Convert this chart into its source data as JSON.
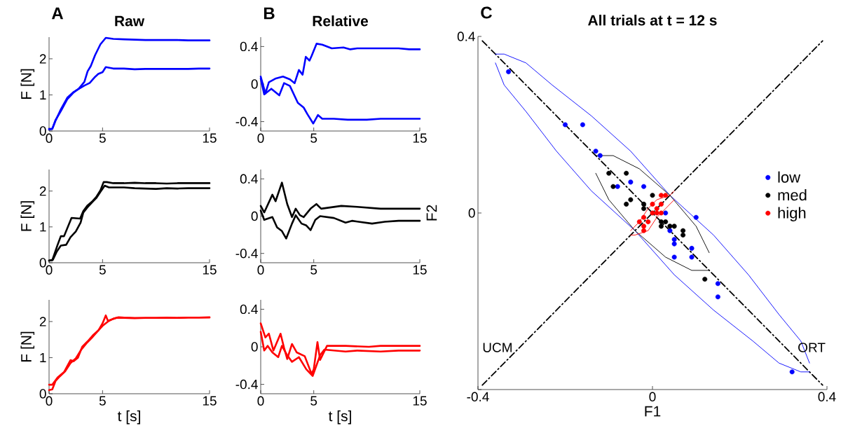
{
  "chart_data": [
    {
      "type": "line",
      "title": "Raw",
      "ylabel": "F [N]",
      "annotations": [
        "A"
      ],
      "xlim": [
        0,
        15
      ],
      "ylim": [
        0,
        2.6
      ],
      "xticks": [
        0,
        5,
        15
      ],
      "yticks": [
        0,
        1,
        2
      ],
      "series": [
        {
          "color": "#0000ff",
          "x": [
            0,
            0.3,
            0.6,
            1.1,
            1.7,
            2.3,
            2.8,
            3.3,
            3.6,
            3.9,
            4.3,
            4.8,
            5.3,
            6,
            7,
            8,
            9,
            10,
            11,
            12,
            13,
            14,
            15
          ],
          "values": [
            0.05,
            0.06,
            0.3,
            0.55,
            0.88,
            1.07,
            1.18,
            1.36,
            1.65,
            1.8,
            2.1,
            2.4,
            2.58,
            2.55,
            2.54,
            2.53,
            2.52,
            2.52,
            2.52,
            2.52,
            2.51,
            2.51,
            2.51
          ]
        },
        {
          "color": "#0000ff",
          "x": [
            0,
            0.3,
            0.6,
            1.1,
            1.7,
            2.3,
            2.8,
            3.3,
            3.8,
            4.3,
            4.6,
            5.0,
            5.3,
            6,
            7,
            8,
            9,
            10,
            11,
            12,
            13,
            14,
            15
          ],
          "values": [
            0.05,
            0.06,
            0.28,
            0.6,
            0.92,
            1.08,
            1.17,
            1.26,
            1.33,
            1.5,
            1.58,
            1.63,
            1.77,
            1.73,
            1.73,
            1.71,
            1.72,
            1.72,
            1.72,
            1.72,
            1.72,
            1.73,
            1.73
          ]
        }
      ]
    },
    {
      "type": "line",
      "ylabel": "F [N]",
      "xlim": [
        0,
        15
      ],
      "ylim": [
        0,
        2.6
      ],
      "xticks": [
        0,
        5,
        15
      ],
      "yticks": [
        0,
        1,
        2
      ],
      "series": [
        {
          "color": "#000000",
          "x": [
            0,
            0.3,
            0.8,
            1.1,
            1.4,
            2.1,
            2.9,
            3.2,
            3.6,
            4.0,
            4.4,
            4.8,
            5.1,
            5.4,
            6,
            7,
            8,
            9,
            10,
            11,
            12,
            13,
            14,
            15
          ],
          "values": [
            0.06,
            0.07,
            0.5,
            0.74,
            0.74,
            1.25,
            1.23,
            1.44,
            1.6,
            1.7,
            1.83,
            2.02,
            2.25,
            2.25,
            2.22,
            2.22,
            2.23,
            2.22,
            2.22,
            2.21,
            2.22,
            2.22,
            2.22,
            2.22
          ]
        },
        {
          "color": "#000000",
          "x": [
            0,
            0.35,
            0.7,
            1.1,
            1.6,
            2.0,
            2.5,
            2.95,
            3.2,
            3.6,
            4.0,
            4.4,
            4.8,
            5.2,
            5.6,
            6,
            7,
            8,
            9,
            10,
            11,
            12,
            13,
            14,
            15
          ],
          "values": [
            0.06,
            0.08,
            0.3,
            0.48,
            0.5,
            0.71,
            0.87,
            1.12,
            1.4,
            1.55,
            1.68,
            1.8,
            1.98,
            2.15,
            2.1,
            2.1,
            2.1,
            2.08,
            2.07,
            2.06,
            2.08,
            2.07,
            2.08,
            2.08,
            2.08
          ]
        }
      ]
    },
    {
      "type": "line",
      "xlabel": "t [s]",
      "ylabel": "F [N]",
      "xlim": [
        0,
        15
      ],
      "ylim": [
        0,
        2.6
      ],
      "xticks": [
        0,
        5,
        15
      ],
      "yticks": [
        0,
        1,
        2
      ],
      "series": [
        {
          "color": "#ff0000",
          "x": [
            0,
            0.3,
            0.8,
            1.4,
            2.0,
            2.3,
            2.7,
            3.1,
            3.6,
            4.1,
            4.6,
            5.0,
            5.3,
            5.5,
            5.8,
            6.3,
            7,
            8,
            9,
            10,
            11,
            12,
            13,
            14,
            15
          ],
          "values": [
            0.25,
            0.25,
            0.45,
            0.6,
            0.93,
            0.9,
            1.0,
            1.3,
            1.45,
            1.62,
            1.75,
            1.95,
            2.17,
            2.02,
            2.05,
            2.1,
            2.1,
            2.09,
            2.1,
            2.1,
            2.1,
            2.1,
            2.11,
            2.11,
            2.11
          ]
        },
        {
          "color": "#ff0000",
          "x": [
            0,
            0.3,
            0.6,
            1.0,
            1.5,
            2.0,
            2.5,
            3.0,
            3.5,
            4.0,
            4.5,
            5.0,
            5.5,
            6.0,
            6.5,
            7,
            8,
            9,
            10,
            11,
            12,
            13,
            14,
            15
          ],
          "values": [
            0.1,
            0.12,
            0.35,
            0.48,
            0.62,
            0.85,
            0.98,
            1.22,
            1.4,
            1.55,
            1.72,
            1.88,
            2.0,
            2.08,
            2.12,
            2.11,
            2.1,
            2.1,
            2.1,
            2.11,
            2.1,
            2.11,
            2.11,
            2.12
          ]
        }
      ]
    },
    {
      "type": "line",
      "title": "Relative",
      "annotations": [
        "B"
      ],
      "xlim": [
        0,
        15
      ],
      "ylim": [
        -0.5,
        0.5
      ],
      "xticks": [
        0,
        5,
        15
      ],
      "yticks": [
        -0.4,
        0,
        0.4
      ],
      "series": [
        {
          "color": "#0000ff",
          "x": [
            0,
            0.44,
            0.77,
            1.43,
            2.1,
            2.75,
            3.2,
            3.6,
            3.95,
            4.25,
            4.6,
            4.8,
            5.27,
            5.8,
            6.7,
            7.8,
            8.45,
            9.1,
            10,
            11,
            12,
            13,
            14,
            15
          ],
          "values": [
            0.08,
            -0.1,
            0.02,
            0.06,
            0.08,
            0.05,
            0.01,
            0.15,
            0.1,
            0.29,
            0.25,
            0.3,
            0.43,
            0.42,
            0.38,
            0.39,
            0.37,
            0.38,
            0.38,
            0.38,
            0.38,
            0.38,
            0.37,
            0.37
          ]
        },
        {
          "color": "#0000ff",
          "x": [
            0,
            0.33,
            1.0,
            1.75,
            2.2,
            2.75,
            3.5,
            4.05,
            4.4,
            4.95,
            5.4,
            5.8,
            6.9,
            8.2,
            10,
            11.3,
            12,
            13,
            14,
            15
          ],
          "values": [
            0.06,
            -0.11,
            -0.05,
            -0.12,
            0.01,
            -0.02,
            -0.2,
            -0.25,
            -0.32,
            -0.42,
            -0.33,
            -0.37,
            -0.37,
            -0.38,
            -0.38,
            -0.37,
            -0.37,
            -0.37,
            -0.37,
            -0.37
          ]
        }
      ]
    },
    {
      "type": "line",
      "xlim": [
        0,
        15
      ],
      "ylim": [
        -0.5,
        0.5
      ],
      "xticks": [
        0,
        5,
        15
      ],
      "yticks": [
        -0.4,
        0,
        0.4
      ],
      "series": [
        {
          "color": "#000000",
          "x": [
            0,
            0.33,
            1.1,
            1.4,
            2.0,
            2.5,
            2.95,
            3.3,
            3.7,
            4.05,
            4.7,
            5.25,
            5.7,
            7.6,
            9.1,
            11.3,
            13,
            15
          ],
          "values": [
            0.11,
            0.04,
            0.23,
            0.16,
            0.36,
            0.13,
            -0.01,
            0.08,
            0.01,
            -0.01,
            0.08,
            0.13,
            0.08,
            0.11,
            0.1,
            0.08,
            0.08,
            0.08
          ]
        },
        {
          "color": "#000000",
          "x": [
            0,
            0.33,
            1.1,
            1.54,
            2.0,
            2.4,
            2.95,
            3.3,
            3.85,
            4.3,
            4.7,
            5.15,
            5.6,
            6.9,
            8.0,
            8.6,
            10.5,
            11.7,
            13,
            15
          ],
          "values": [
            0.06,
            -0.04,
            -0.01,
            -0.12,
            -0.16,
            -0.24,
            -0.08,
            0.01,
            -0.08,
            -0.1,
            -0.15,
            -0.04,
            0.0,
            -0.02,
            -0.07,
            -0.05,
            -0.08,
            -0.06,
            -0.05,
            -0.05
          ]
        }
      ]
    },
    {
      "type": "line",
      "xlabel": "t [s]",
      "xlim": [
        0,
        15
      ],
      "ylim": [
        -0.5,
        0.5
      ],
      "xticks": [
        0,
        5,
        15
      ],
      "yticks": [
        -0.4,
        0,
        0.4
      ],
      "series": [
        {
          "color": "#ff0000",
          "x": [
            0,
            0.44,
            0.77,
            1.2,
            1.87,
            2.2,
            2.5,
            2.95,
            3.4,
            4.15,
            4.8,
            5.0,
            5.35,
            5.6,
            6.25,
            8.0,
            10.2,
            11.3,
            13,
            15
          ],
          "values": [
            0.25,
            0.1,
            0.14,
            -0.04,
            0.14,
            -0.01,
            -0.13,
            0.03,
            -0.06,
            -0.1,
            -0.29,
            -0.24,
            0.05,
            -0.14,
            0.01,
            0.01,
            0.0,
            0.01,
            0.01,
            0.01
          ]
        },
        {
          "color": "#ff0000",
          "x": [
            0,
            0.33,
            0.66,
            1.1,
            1.65,
            2.0,
            2.5,
            2.95,
            3.6,
            4.3,
            4.9,
            5.6,
            6.0,
            8.0,
            9.1,
            11.3,
            13,
            15
          ],
          "values": [
            0.16,
            -0.04,
            0.01,
            -0.06,
            -0.11,
            0.01,
            -0.09,
            -0.16,
            -0.11,
            -0.24,
            -0.31,
            -0.09,
            -0.03,
            -0.05,
            -0.04,
            -0.05,
            -0.04,
            -0.04
          ]
        }
      ]
    },
    {
      "type": "scatter",
      "title": "All trials at t = 12 s",
      "xlabel": "F1",
      "ylabel": "F2",
      "legend": "right",
      "annotations": [
        "C",
        "UCM",
        "ORT"
      ],
      "xlim": [
        -0.4,
        0.4
      ],
      "ylim": [
        -0.4,
        0.4
      ],
      "xticks": [
        -0.4,
        0,
        0.4
      ],
      "yticks": [
        {
          "value": -0.4,
          "label": null
        },
        0,
        0.4
      ],
      "series": [
        {
          "type": "line",
          "marker": "none",
          "line_style": "dashed",
          "color": "#000000",
          "x": [
            -0.39,
            0.39
          ],
          "values": [
            -0.39,
            0.39
          ]
        },
        {
          "type": "line",
          "marker": "none",
          "line_style": "dashed",
          "color": "#000000",
          "x": [
            -0.39,
            0.39
          ],
          "values": [
            0.39,
            -0.39
          ]
        },
        {
          "type": "line",
          "marker": "none",
          "color": "#0000ff",
          "x": [
            -0.36,
            -0.34,
            -0.29,
            -0.23,
            -0.14,
            -0.05,
            0.04,
            0.14,
            0.22,
            0.29,
            0.34,
            0.36
          ],
          "values": [
            0.36,
            0.36,
            0.34,
            0.29,
            0.22,
            0.14,
            0.04,
            -0.05,
            -0.14,
            -0.23,
            -0.29,
            -0.34
          ]
        },
        {
          "type": "line",
          "marker": "none",
          "color": "#0000ff",
          "x": [
            -0.36,
            -0.34,
            -0.29,
            -0.22,
            -0.14,
            -0.04,
            0.05,
            0.14,
            0.23,
            0.29,
            0.34,
            0.36
          ],
          "values": [
            0.34,
            0.29,
            0.23,
            0.14,
            0.05,
            -0.04,
            -0.14,
            -0.22,
            -0.29,
            -0.34,
            -0.36,
            -0.36
          ]
        },
        {
          "type": "line",
          "marker": "none",
          "color": "#000000",
          "x": [
            -0.13,
            -0.09,
            -0.03,
            0.04,
            0.1,
            0.13
          ],
          "values": [
            0.13,
            0.13,
            0.1,
            0.04,
            -0.03,
            -0.09
          ]
        },
        {
          "type": "line",
          "marker": "none",
          "color": "#000000",
          "x": [
            -0.13,
            -0.1,
            -0.04,
            0.03,
            0.09,
            0.13
          ],
          "values": [
            0.09,
            0.03,
            -0.04,
            -0.1,
            -0.13,
            -0.13
          ]
        },
        {
          "type": "line",
          "marker": "none",
          "color": "#ff0000",
          "x": [
            -0.05,
            -0.03,
            -0.01,
            0.01,
            0.04,
            0.05
          ],
          "values": [
            -0.04,
            -0.02,
            0.01,
            0.03,
            0.04,
            0.05
          ]
        },
        {
          "type": "line",
          "marker": "none",
          "color": "#ff0000",
          "x": [
            -0.05,
            -0.04,
            -0.01,
            0.01,
            0.03,
            0.05
          ],
          "values": [
            -0.05,
            -0.05,
            -0.04,
            -0.01,
            0.01,
            0.03
          ]
        },
        {
          "name": "low",
          "marker": "circle",
          "color": "#0000ff",
          "x": [
            -0.33,
            -0.2,
            -0.16,
            -0.13,
            -0.12,
            -0.08,
            -0.05,
            -0.02,
            0.03,
            0.1,
            0.04,
            0.05,
            0.05,
            0.09,
            0.05,
            0.09,
            0.15,
            0.15,
            0.32
          ],
          "values": [
            0.32,
            0.2,
            0.2,
            0.14,
            0.13,
            0.06,
            0.07,
            0.06,
            0,
            -0.01,
            -0.04,
            -0.07,
            -0.06,
            -0.08,
            -0.1,
            -0.1,
            -0.16,
            -0.19,
            -0.36
          ]
        },
        {
          "name": "med",
          "marker": "circle",
          "color": "#000000",
          "x": [
            -0.1,
            -0.06,
            -0.09,
            -0.06,
            -0.05,
            0,
            -0.02,
            -0.02,
            0.02,
            0.03,
            0.02,
            0.04,
            0.05,
            0.07,
            0.07,
            0.12
          ],
          "values": [
            0.09,
            0.09,
            0.06,
            0.02,
            0.03,
            0.04,
            0.02,
            0.01,
            -0.02,
            -0.02,
            -0.03,
            -0.03,
            -0.03,
            -0.04,
            -0.05,
            -0.15
          ]
        },
        {
          "name": "high",
          "marker": "circle",
          "color": "#ff0000",
          "x": [
            0.02,
            0.03,
            0,
            0.01,
            0.02,
            -0.02,
            -0.03,
            -0.02,
            -0.02,
            -0.01,
            0,
            0.01,
            0.02
          ],
          "values": [
            0.04,
            0.04,
            0.02,
            0.01,
            0.02,
            -0.01,
            -0.02,
            -0.03,
            -0.04,
            -0.02,
            0,
            0,
            0
          ]
        }
      ]
    }
  ]
}
